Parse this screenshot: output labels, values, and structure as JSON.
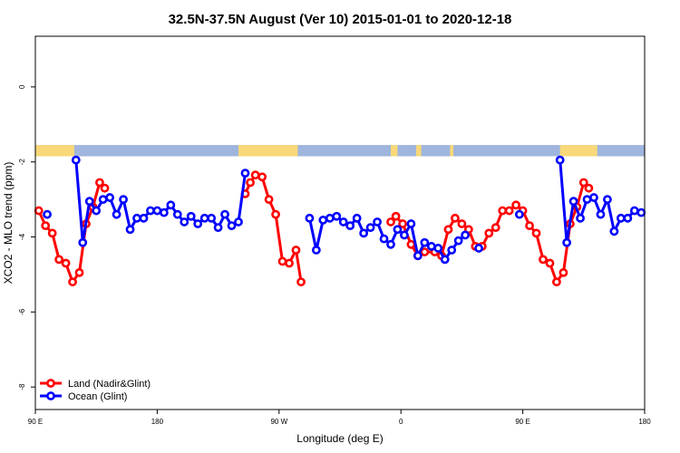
{
  "chart_data": {
    "type": "line",
    "title": "32.5N-37.5N August (Ver 10)   2015-01-01 to 2020-12-18",
    "xlabel": "Longitude (deg E)",
    "ylabel": "XCO2 - MLO trend (ppm)",
    "xlim": [
      90,
      450
    ],
    "ylim": [
      -8.6,
      1.35
    ],
    "x_ticks": [
      {
        "value": 90,
        "label": "90 E"
      },
      {
        "value": 162,
        "label": "180"
      },
      {
        "value": 234,
        "label": "90 W"
      },
      {
        "value": 306,
        "label": "0"
      },
      {
        "value": 378,
        "label": "90 E"
      },
      {
        "value": 450,
        "label": "180"
      }
    ],
    "y_ticks": [
      {
        "value": 0,
        "label": "0"
      },
      {
        "value": -2,
        "label": "-2"
      },
      {
        "value": -4,
        "label": "-4"
      },
      {
        "value": -6,
        "label": "-6"
      },
      {
        "value": -8,
        "label": "-8"
      }
    ],
    "legend": {
      "placement": "bottom-left"
    },
    "surface_strip": {
      "y_range": [
        -1.85,
        -1.55
      ],
      "ocean_color": "#9fb5dd",
      "land_color": "#f8d879",
      "land_segments": [
        [
          90,
          113
        ],
        [
          210,
          245
        ],
        [
          300,
          304
        ],
        [
          315,
          318
        ],
        [
          335,
          337
        ],
        [
          400,
          422
        ]
      ]
    },
    "series": [
      {
        "name": "Land (Nadir&Glint)",
        "color": "#ff0000",
        "segments": [
          [
            [
              92,
              -3.3
            ],
            [
              96,
              -3.7
            ],
            [
              100,
              -3.9
            ],
            [
              104,
              -4.6
            ],
            [
              108,
              -4.7
            ],
            [
              112,
              -5.2
            ],
            [
              116,
              -4.95
            ],
            [
              120,
              -3.65
            ],
            [
              124,
              -3.2
            ],
            [
              128,
              -2.55
            ],
            [
              131,
              -2.7
            ]
          ],
          [
            [
              214,
              -2.85
            ],
            [
              217,
              -2.55
            ],
            [
              220,
              -2.35
            ],
            [
              224,
              -2.4
            ],
            [
              228,
              -3.0
            ],
            [
              232,
              -3.4
            ],
            [
              236,
              -4.65
            ],
            [
              240,
              -4.7
            ],
            [
              244,
              -4.35
            ],
            [
              247,
              -5.2
            ]
          ],
          [
            [
              300,
              -3.6
            ],
            [
              303,
              -3.45
            ],
            [
              307,
              -3.65
            ],
            [
              312,
              -4.2
            ],
            [
              316,
              -4.5
            ],
            [
              320,
              -4.4
            ],
            [
              326,
              -4.4
            ],
            [
              330,
              -4.5
            ],
            [
              334,
              -3.8
            ],
            [
              338,
              -3.5
            ],
            [
              342,
              -3.65
            ],
            [
              346,
              -3.8
            ],
            [
              350,
              -4.25
            ],
            [
              354,
              -4.25
            ],
            [
              358,
              -3.9
            ],
            [
              362,
              -3.75
            ],
            [
              366,
              -3.3
            ],
            [
              370,
              -3.3
            ],
            [
              374,
              -3.15
            ],
            [
              378,
              -3.3
            ],
            [
              382,
              -3.7
            ],
            [
              386,
              -3.9
            ],
            [
              390,
              -4.6
            ],
            [
              394,
              -4.7
            ],
            [
              398,
              -5.2
            ],
            [
              402,
              -4.95
            ],
            [
              406,
              -3.65
            ],
            [
              410,
              -3.2
            ],
            [
              414,
              -2.55
            ],
            [
              417,
              -2.7
            ]
          ]
        ]
      },
      {
        "name": "Ocean (Glint)",
        "color": "#0000ff",
        "segments": [
          [
            [
              97,
              -3.4
            ]
          ],
          [
            [
              114,
              -1.95
            ],
            [
              118,
              -4.15
            ],
            [
              122,
              -3.05
            ],
            [
              126,
              -3.3
            ],
            [
              130,
              -3.0
            ],
            [
              134,
              -2.95
            ],
            [
              138,
              -3.4
            ],
            [
              142,
              -3.0
            ],
            [
              146,
              -3.8
            ],
            [
              150,
              -3.5
            ],
            [
              154,
              -3.5
            ],
            [
              158,
              -3.3
            ],
            [
              162,
              -3.3
            ],
            [
              166,
              -3.35
            ],
            [
              170,
              -3.15
            ],
            [
              174,
              -3.4
            ],
            [
              178,
              -3.6
            ],
            [
              182,
              -3.45
            ],
            [
              186,
              -3.65
            ],
            [
              190,
              -3.5
            ],
            [
              194,
              -3.5
            ],
            [
              198,
              -3.75
            ],
            [
              202,
              -3.4
            ],
            [
              206,
              -3.7
            ],
            [
              210,
              -3.6
            ],
            [
              214,
              -2.3
            ]
          ],
          [
            [
              252,
              -3.5
            ],
            [
              256,
              -4.35
            ],
            [
              260,
              -3.55
            ],
            [
              264,
              -3.5
            ],
            [
              268,
              -3.45
            ],
            [
              272,
              -3.6
            ],
            [
              276,
              -3.7
            ],
            [
              280,
              -3.5
            ],
            [
              284,
              -3.9
            ],
            [
              288,
              -3.75
            ],
            [
              292,
              -3.6
            ],
            [
              296,
              -4.05
            ],
            [
              300,
              -4.2
            ],
            [
              304,
              -3.8
            ],
            [
              308,
              -3.95
            ],
            [
              312,
              -3.65
            ],
            [
              316,
              -4.5
            ],
            [
              320,
              -4.15
            ],
            [
              324,
              -4.25
            ],
            [
              328,
              -4.3
            ],
            [
              332,
              -4.6
            ],
            [
              336,
              -4.35
            ],
            [
              340,
              -4.1
            ],
            [
              344,
              -3.95
            ]
          ],
          [
            [
              352,
              -4.3
            ]
          ],
          [
            [
              376,
              -3.4
            ]
          ],
          [
            [
              400,
              -1.95
            ],
            [
              404,
              -4.15
            ],
            [
              408,
              -3.05
            ],
            [
              412,
              -3.5
            ],
            [
              416,
              -3.0
            ],
            [
              420,
              -2.95
            ],
            [
              424,
              -3.4
            ],
            [
              428,
              -3.0
            ],
            [
              432,
              -3.85
            ],
            [
              436,
              -3.5
            ],
            [
              440,
              -3.5
            ],
            [
              444,
              -3.3
            ],
            [
              448,
              -3.35
            ]
          ]
        ]
      }
    ]
  }
}
